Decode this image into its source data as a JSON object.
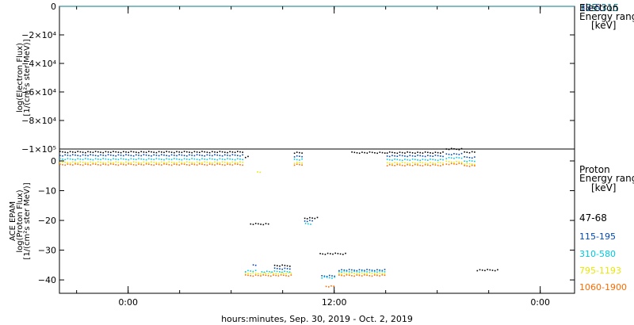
{
  "figure": {
    "xlabel": "hours:minutes, Sep. 30, 2019 - Oct. 2, 2019"
  },
  "chart_data": [
    {
      "type": "line",
      "panel": "top",
      "ylabel_lines": [
        "log(Electron Flux)",
        "[1/(cm²s ster MeV)]"
      ],
      "ylim": [
        -100000,
        0
      ],
      "yticks": [
        {
          "value": 0,
          "label": "0"
        },
        {
          "value": -20000,
          "label": "−2×10⁴"
        },
        {
          "value": -40000,
          "label": "−4×10⁴"
        },
        {
          "value": -60000,
          "label": "−6×10⁴"
        },
        {
          "value": -80000,
          "label": "−8×10⁴"
        },
        {
          "value": -100000,
          "label": "−1×10⁵"
        }
      ],
      "xlim": [
        -8,
        52
      ],
      "legend": {
        "overlap_labels": [
          "38-53",
          "175-315",
          "Electron"
        ],
        "lines": [
          "Energy ranges",
          "[keV]"
        ]
      },
      "series": [
        {
          "name": "38-53",
          "color": "#0a7a8a",
          "points": [
            [
              -8,
              0
            ],
            [
              52,
              0
            ]
          ]
        }
      ]
    },
    {
      "type": "scatter",
      "panel": "bottom",
      "ylabel_lines": [
        "ACE EPAM",
        "log(Proton Flux)",
        "[1/(cm²s ster MeV)]"
      ],
      "ylim": [
        -44.5,
        4
      ],
      "yticks": [
        {
          "value": 0,
          "label": "0"
        },
        {
          "value": -10,
          "label": "−10"
        },
        {
          "value": -20,
          "label": "−20"
        },
        {
          "value": -30,
          "label": "−30"
        },
        {
          "value": -40,
          "label": "−40"
        }
      ],
      "xlim": [
        -8,
        52
      ],
      "xticks": [
        {
          "value": 0,
          "label": "0:00"
        },
        {
          "value": 24,
          "label": "12:00"
        },
        {
          "value": 48,
          "label": "0:00"
        }
      ],
      "legend": {
        "title_lines": [
          "Proton",
          "Energy ranges",
          "[keV]"
        ],
        "position": "right"
      },
      "series": [
        {
          "name": "47-68",
          "color": "#000000",
          "segments": [
            {
              "x": [
                -8,
                13.5
              ],
              "y": 3.2
            },
            {
              "x": [
                13.6,
                14
              ],
              "y": 1.5
            },
            {
              "x": [
                14.2,
                16.5
              ],
              "y": -21
            },
            {
              "x": [
                17,
                19
              ],
              "y": -35
            },
            {
              "x": [
                19.3,
                20.3
              ],
              "y": 3.0
            },
            {
              "x": [
                20.5,
                22
              ],
              "y": -19
            },
            {
              "x": [
                22.3,
                25.5
              ],
              "y": -31
            },
            {
              "x": [
                26,
                30
              ],
              "y": 3.0
            },
            {
              "x": [
                30.1,
                36.6
              ],
              "y": 3.0
            },
            {
              "x": [
                37,
                38.8
              ],
              "y": 4.2
            },
            {
              "x": [
                39.1,
                40.4
              ],
              "y": 3.1
            },
            {
              "x": [
                40.6,
                43
              ],
              "y": -36.5
            }
          ]
        },
        {
          "name": "115-195",
          "color": "#0047b3",
          "segments": [
            {
              "x": [
                -8,
                13.5
              ],
              "y": 2.1
            },
            {
              "x": [
                14.5,
                15
              ],
              "y": -34.8
            },
            {
              "x": [
                17,
                19
              ],
              "y": -36
            },
            {
              "x": [
                19.3,
                20.3
              ],
              "y": 1.7
            },
            {
              "x": [
                20.5,
                21.5
              ],
              "y": -20
            },
            {
              "x": [
                22.5,
                24
              ],
              "y": -38.5
            },
            {
              "x": [
                24.5,
                30
              ],
              "y": -36.5
            },
            {
              "x": [
                30.1,
                36.6
              ],
              "y": 1.9
            },
            {
              "x": [
                37,
                38.8
              ],
              "y": 2.5
            },
            {
              "x": [
                39.1,
                40.4
              ],
              "y": 1.4
            }
          ]
        },
        {
          "name": "310-580",
          "color": "#00c8e0",
          "segments": [
            {
              "x": [
                -8,
                13.5
              ],
              "y": 0.8
            },
            {
              "x": [
                13.6,
                15
              ],
              "y": -36.8
            },
            {
              "x": [
                15.5,
                19
              ],
              "y": -37
            },
            {
              "x": [
                19.3,
                20.3
              ],
              "y": 0.7
            },
            {
              "x": [
                20.6,
                21.3
              ],
              "y": -21
            },
            {
              "x": [
                22.5,
                24
              ],
              "y": -39
            },
            {
              "x": [
                24.5,
                30
              ],
              "y": -37
            },
            {
              "x": [
                30.1,
                36.6
              ],
              "y": 0.6
            },
            {
              "x": [
                37,
                38.8
              ],
              "y": 1.2
            },
            {
              "x": [
                39.1,
                40.4
              ],
              "y": 0.2
            }
          ]
        },
        {
          "name": "795-1193",
          "color": "#e8e800",
          "segments": [
            {
              "x": [
                -8,
                13.5
              ],
              "y": -0.3
            },
            {
              "x": [
                15,
                15.3
              ],
              "y": -3.5
            },
            {
              "x": [
                13.6,
                19
              ],
              "y": -37.6
            },
            {
              "x": [
                19.3,
                20.3
              ],
              "y": -0.4
            },
            {
              "x": [
                24.5,
                30
              ],
              "y": -37.6
            },
            {
              "x": [
                30.1,
                36.6
              ],
              "y": -0.5
            },
            {
              "x": [
                37,
                38.8
              ],
              "y": -0.1
            },
            {
              "x": [
                39.1,
                40.4
              ],
              "y": -0.8
            }
          ]
        },
        {
          "name": "1060-1900",
          "color": "#ff6a00",
          "segments": [
            {
              "x": [
                -8,
                13.5
              ],
              "y": -1.0
            },
            {
              "x": [
                13.6,
                19
              ],
              "y": -38.3
            },
            {
              "x": [
                19.3,
                20.3
              ],
              "y": -1.1
            },
            {
              "x": [
                23,
                24
              ],
              "y": -42
            },
            {
              "x": [
                24.5,
                30
              ],
              "y": -38.3
            },
            {
              "x": [
                30.1,
                36.6
              ],
              "y": -1.2
            },
            {
              "x": [
                37,
                38.8
              ],
              "y": -0.8
            },
            {
              "x": [
                39.1,
                40.4
              ],
              "y": -1.4
            }
          ]
        }
      ]
    }
  ]
}
